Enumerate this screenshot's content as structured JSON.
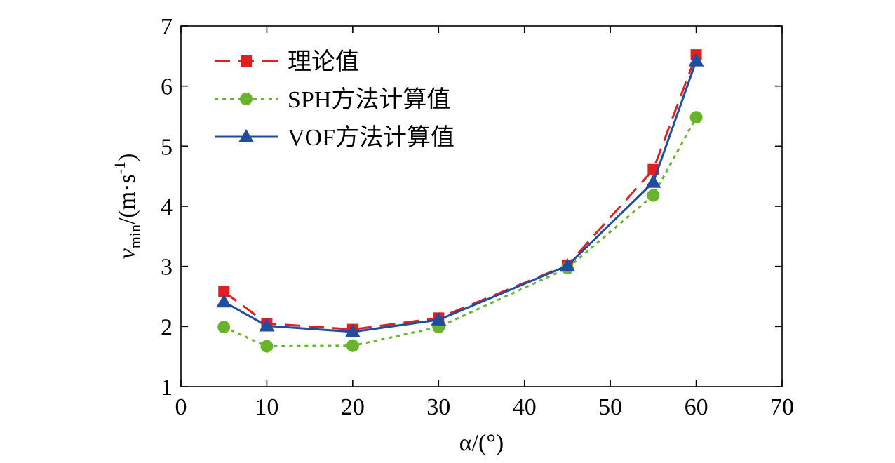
{
  "chart_data": {
    "type": "line",
    "title": "",
    "x": [
      5,
      10,
      20,
      30,
      45,
      55,
      60
    ],
    "xlim": [
      0,
      70
    ],
    "ylim": [
      1,
      7
    ],
    "xticks": [
      "0",
      "10",
      "20",
      "30",
      "40",
      "50",
      "60",
      "70"
    ],
    "yticks": [
      "1",
      "2",
      "3",
      "4",
      "5",
      "6",
      "7"
    ],
    "xlabel": "α/(°)",
    "ylabel": {
      "var": "v",
      "sub": "min",
      "rest": "/(m·s",
      "sup": "-1",
      "close": ")"
    },
    "grid": false,
    "legend_position": "top-left",
    "series": [
      {
        "name": "理论值",
        "values": [
          2.58,
          2.05,
          1.95,
          2.14,
          3.02,
          4.61,
          6.52
        ],
        "color": "#e02020",
        "line": "dashed",
        "marker": "square"
      },
      {
        "name": "SPH方法计算值",
        "values": [
          1.99,
          1.67,
          1.68,
          1.99,
          2.97,
          4.18,
          5.48
        ],
        "color": "#6ab42d",
        "line": "dotted",
        "marker": "circle"
      },
      {
        "name": "VOF方法计算值",
        "values": [
          2.41,
          2.01,
          1.91,
          2.11,
          3.01,
          4.4,
          6.42
        ],
        "color": "#1f4e9c",
        "line": "solid",
        "marker": "triangle"
      }
    ]
  }
}
